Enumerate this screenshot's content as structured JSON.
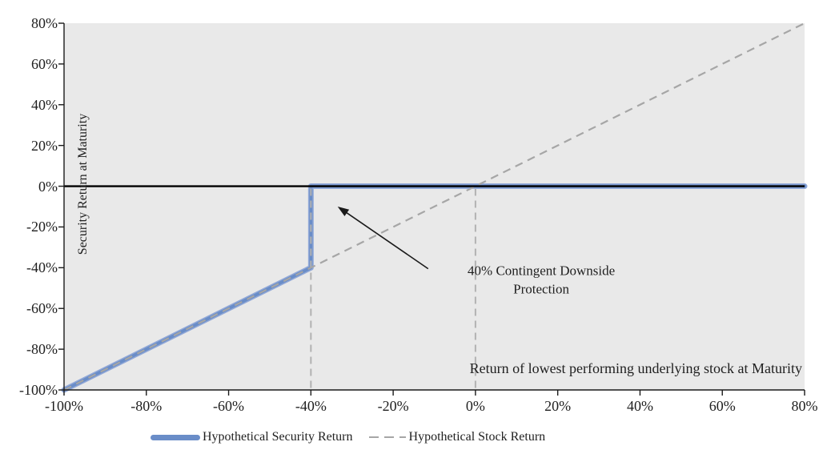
{
  "chart_data": {
    "type": "line",
    "title": "",
    "xlabel": "Return of lowest performing underlying stock at Maturity",
    "ylabel": "Security Return at Maturity",
    "xlim": [
      -100,
      80
    ],
    "ylim": [
      -100,
      80
    ],
    "grid": "off",
    "legend_position": "bottom",
    "x_ticks": {
      "values": [
        -100,
        -80,
        -60,
        -40,
        -20,
        0,
        20,
        40,
        60,
        80
      ],
      "labels": [
        "-100%",
        "-80%",
        "-60%",
        "-40%",
        "-20%",
        "0%",
        "20%",
        "40%",
        "60%",
        "80%"
      ]
    },
    "y_ticks": {
      "values": [
        80,
        60,
        40,
        20,
        0,
        -20,
        -40,
        -60,
        -80,
        -100
      ],
      "labels": [
        "80%",
        "60%",
        "40%",
        "20%",
        "0%",
        "-20%",
        "-40%",
        "-60%",
        "-80%",
        "-100%"
      ]
    },
    "series": [
      {
        "name": "Hypothetical Security Return",
        "style": "solid-thick",
        "color": "#6a8dc8",
        "edge_color": "#92a9d8",
        "points": [
          [
            -100,
            -100
          ],
          [
            -40,
            -40
          ],
          [
            -40,
            0
          ],
          [
            80,
            0
          ]
        ]
      },
      {
        "name": "Hypothetical Stock Return",
        "style": "dashed",
        "color": "#a6a6a6",
        "points": [
          [
            -100,
            -100
          ],
          [
            80,
            80
          ]
        ]
      }
    ],
    "reference_lines": [
      {
        "x": -40,
        "y_from": 0,
        "y_to": -100,
        "style": "dashed",
        "color": "#b2b2b2"
      },
      {
        "x": 0,
        "y_from": 0,
        "y_to": -100,
        "style": "dashed",
        "color": "#b2b2b2"
      }
    ],
    "zero_line": {
      "y": 0,
      "color": "#000000"
    },
    "annotation": {
      "lines": [
        "40% Contingent Downside",
        "Protection"
      ],
      "center_data": [
        16,
        -46
      ],
      "arrow_tail_data": [
        -11.5,
        -40.5
      ],
      "arrow_head_data": [
        -33.5,
        -10
      ]
    },
    "colors": {
      "plot_bg": "#e9e9e9",
      "axis": "#1a1a1a",
      "text": "#1f1f1f"
    }
  }
}
